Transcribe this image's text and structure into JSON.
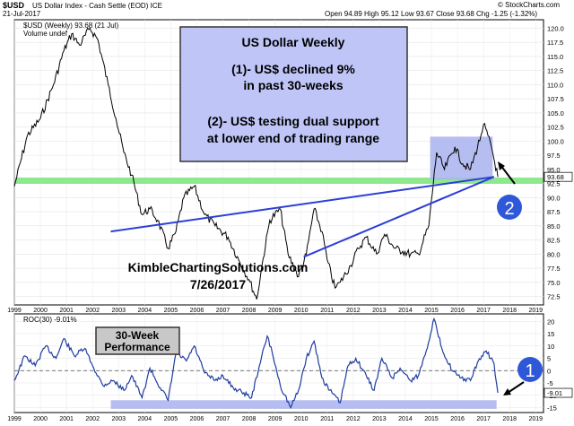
{
  "header": {
    "symbol": "$USD",
    "name": "US Dollar Index - Cash Settle (EOD) ICE",
    "date": "21-Jul-2017",
    "ohlc": "Open 94.89  High 95.12  Low 93.67  Close 93.68  Chg -1.25 (-1.32%)",
    "copyright": "© StockCharts.com"
  },
  "chart_data": [
    {
      "type": "line",
      "legend_text": "$USD (Weekly) 93.68 (21 Jul)",
      "legend_sub": "Volume undef",
      "y_ticks": [
        "72.5",
        "75.0",
        "77.5",
        "80.0",
        "82.5",
        "85.0",
        "87.5",
        "90.0",
        "92.5",
        "95.0",
        "97.5",
        "100.0",
        "102.5",
        "105.0",
        "107.5",
        "110.0",
        "112.5",
        "115.0",
        "117.5",
        "120.0"
      ],
      "ylim": [
        71,
        121.5
      ],
      "x_ticks": [
        "1999",
        "2000",
        "2001",
        "2002",
        "2003",
        "2004",
        "2005",
        "2006",
        "2007",
        "2008",
        "2009",
        "2010",
        "2011",
        "2012",
        "2013",
        "2014",
        "2015",
        "2016",
        "2017",
        "2018",
        "2019"
      ],
      "xlim": [
        1999.0,
        2019.3
      ],
      "last_value_label": "93.68",
      "series": [
        {
          "x": [
            1999.0,
            1999.5,
            2000.0,
            2000.5,
            2000.9,
            2001.2,
            2001.5,
            2001.9,
            2002.2,
            2002.6,
            2002.9,
            2003.2,
            2003.5,
            2003.9,
            2004.2,
            2004.5,
            2004.9,
            2005.2,
            2005.5,
            2005.9,
            2006.3,
            2006.7,
            2007.2,
            2007.6,
            2008.0,
            2008.3,
            2008.5,
            2008.8,
            2009.2,
            2009.5,
            2009.9,
            2010.2,
            2010.5,
            2010.8,
            2011.0,
            2011.3,
            2011.5,
            2011.9,
            2012.2,
            2012.5,
            2012.9,
            2013.2,
            2013.6,
            2013.9,
            2014.2,
            2014.5,
            2014.9,
            2015.2,
            2015.5,
            2015.9,
            2016.2,
            2016.5,
            2016.9,
            2017.0,
            2017.3,
            2017.55
          ],
          "y": [
            92.0,
            101.0,
            104.0,
            110.0,
            116.0,
            119.0,
            117.0,
            120.0,
            118.0,
            110.0,
            104.0,
            98.0,
            94.0,
            87.0,
            88.0,
            86.0,
            81.0,
            84.0,
            90.0,
            92.0,
            87.0,
            85.0,
            83.0,
            79.0,
            75.5,
            72.0,
            78.0,
            86.0,
            88.0,
            80.0,
            76.0,
            80.0,
            88.0,
            84.0,
            79.0,
            74.0,
            75.0,
            78.0,
            81.0,
            83.0,
            80.0,
            83.5,
            81.0,
            80.5,
            80.0,
            80.0,
            85.0,
            98.0,
            95.0,
            99.0,
            96.0,
            95.0,
            101.0,
            103.0,
            99.0,
            93.68
          ]
        }
      ],
      "horizontal_line": 93.0,
      "trend_lines": [
        {
          "from": [
            2002.7,
            84.0
          ],
          "to": [
            2017.4,
            93.68
          ]
        },
        {
          "from": [
            2010.1,
            79.5
          ],
          "to": [
            2017.4,
            93.68
          ]
        }
      ],
      "range_box": {
        "x": [
          2014.95,
          2017.35
        ],
        "y": [
          93.2,
          100.8
        ]
      },
      "textbox": {
        "title": "US Dollar Weekly",
        "line1": "(1)- US$ declined 9%",
        "line2": "in past 30-weeks",
        "line3": "(2)- US$ testing dual support",
        "line4": "at lower end of trading range"
      },
      "watermark": "KimbleChartingSolutions.com",
      "watermark_date": "7/26/2017",
      "marker_label": "2"
    },
    {
      "type": "line",
      "legend_text": "ROC(30) -9.01%",
      "y_ticks": [
        "-15",
        "-10",
        "-5",
        "0",
        "5",
        "10",
        "15",
        "20"
      ],
      "ylim": [
        -17,
        23
      ],
      "x_ticks": [
        "1999",
        "2000",
        "2001",
        "2002",
        "2003",
        "2004",
        "2005",
        "2006",
        "2007",
        "2008",
        "2009",
        "2010",
        "2011",
        "2012",
        "2013",
        "2014",
        "2015",
        "2016",
        "2017",
        "2018",
        "2019"
      ],
      "xlim": [
        1999.0,
        2019.3
      ],
      "last_value_label": "-9.01",
      "series": [
        {
          "x": [
            1999.0,
            1999.4,
            1999.8,
            2000.2,
            2000.6,
            2000.9,
            2001.3,
            2001.7,
            2002.0,
            2002.4,
            2002.8,
            2003.2,
            2003.5,
            2003.9,
            2004.2,
            2004.6,
            2004.9,
            2005.2,
            2005.6,
            2005.9,
            2006.3,
            2006.7,
            2007.0,
            2007.4,
            2007.8,
            2008.1,
            2008.4,
            2008.7,
            2008.9,
            2009.2,
            2009.6,
            2009.9,
            2010.2,
            2010.5,
            2010.8,
            2011.1,
            2011.5,
            2011.8,
            2012.1,
            2012.5,
            2012.8,
            2013.1,
            2013.5,
            2013.8,
            2014.2,
            2014.5,
            2014.8,
            2015.1,
            2015.4,
            2015.8,
            2016.1,
            2016.5,
            2016.8,
            2017.1,
            2017.4,
            2017.55
          ],
          "y": [
            -4,
            6,
            2,
            10,
            5,
            13,
            6,
            9,
            2,
            -6,
            -4,
            -8,
            -2,
            -11,
            1,
            -7,
            -12,
            7,
            4,
            10,
            -1,
            -4,
            -2,
            -7,
            -9,
            -11,
            2,
            14,
            7,
            -6,
            -15,
            -8,
            5,
            12,
            -3,
            -8,
            -13,
            2,
            5,
            -2,
            -8,
            5,
            -3,
            1,
            -4,
            -2,
            8,
            21,
            9,
            0,
            -3,
            -4,
            4,
            8,
            3,
            -9.01
          ]
        }
      ],
      "zero_line": 0,
      "support_band": {
        "x": [
          2002.7,
          2017.5
        ],
        "y": [
          -15.5,
          -12.0
        ]
      },
      "textbox": {
        "line1": "30-Week",
        "line2": "Performance"
      },
      "marker_label": "1"
    }
  ],
  "colors": {
    "price": "#000000",
    "roc": "#1f3da0",
    "trend": "#2b3fd6",
    "support": "#8ee88e",
    "box": "#a9b3ee",
    "textbox_fill": "#bfc6f7",
    "grey_box": "#c8c8c8",
    "marker": "#2f58d8",
    "watermark": "#000000"
  }
}
